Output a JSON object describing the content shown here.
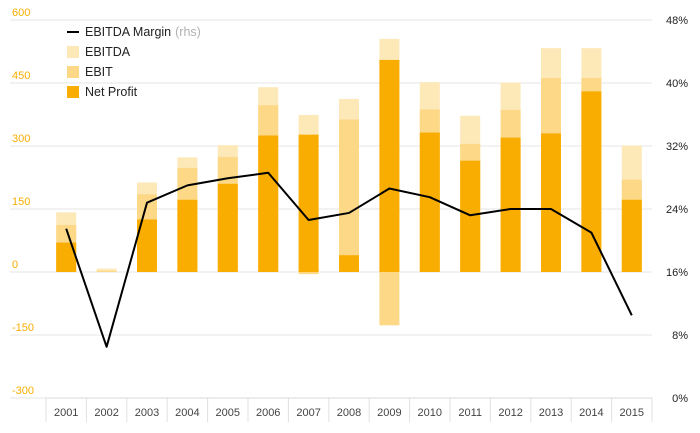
{
  "chart_data": {
    "type": "bar",
    "stacking": "overlay",
    "categories": [
      "2001",
      "2002",
      "2003",
      "2004",
      "2005",
      "2006",
      "2007",
      "2008",
      "2009",
      "2010",
      "2011",
      "2012",
      "2013",
      "2014",
      "2015"
    ],
    "series": [
      {
        "name": "EBITDA",
        "type": "bar",
        "color": "#fde8b8",
        "values": [
          142,
          8,
          213,
          273,
          302,
          440,
          374,
          412,
          555,
          452,
          372,
          451,
          533,
          533,
          301
        ]
      },
      {
        "name": "EBIT",
        "type": "bar",
        "color": "#fdd886",
        "values": [
          112,
          3,
          185,
          248,
          274,
          397,
          -5,
          363,
          -127,
          387,
          305,
          386,
          462,
          462,
          220
        ]
      },
      {
        "name": "Net Profit",
        "type": "bar",
        "color": "#f9ad00",
        "values": [
          70,
          0,
          125,
          172,
          210,
          325,
          327,
          40,
          505,
          332,
          265,
          320,
          330,
          430,
          172
        ]
      },
      {
        "name": "EBITDA Margin",
        "unit": "(rhs)",
        "axis": "right",
        "type": "line",
        "color": "#000000",
        "values": [
          21.5,
          6.5,
          24.8,
          27.0,
          27.9,
          28.6,
          22.6,
          23.5,
          26.6,
          25.5,
          23.2,
          24.0,
          24.0,
          21.0,
          10.5
        ]
      }
    ],
    "y_left": {
      "ylim": [
        -300,
        600
      ],
      "ticks": [
        "-300",
        "-150",
        "0",
        "150",
        "300",
        "450",
        "600"
      ],
      "tick_color": "#f9ad00"
    },
    "y_right": {
      "ylim": [
        0,
        48
      ],
      "ticks": [
        "0%",
        "8%",
        "16%",
        "24%",
        "32%",
        "40%",
        "48%"
      ]
    },
    "grid": true,
    "legend_position": "top-left",
    "title": "",
    "xlabel": "",
    "ylabel": ""
  }
}
